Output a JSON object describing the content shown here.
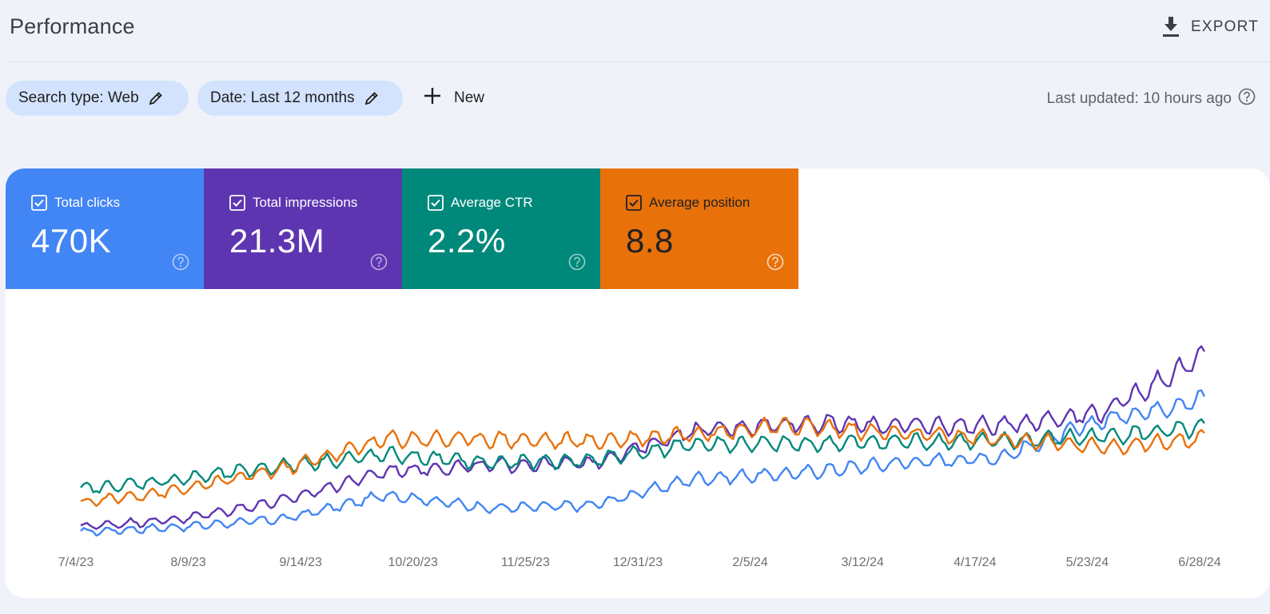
{
  "header": {
    "title": "Performance",
    "export_label": "EXPORT"
  },
  "filters": {
    "search_type": "Search type: Web",
    "date": "Date: Last 12 months",
    "new_label": "New",
    "last_updated": "Last updated: 10 hours ago"
  },
  "metrics": [
    {
      "label": "Total clicks",
      "value": "470K",
      "color": "#4285f4",
      "checked": true
    },
    {
      "label": "Total impressions",
      "value": "21.3M",
      "color": "#5e35b1",
      "checked": true
    },
    {
      "label": "Average CTR",
      "value": "2.2%",
      "color": "#00897b",
      "checked": true
    },
    {
      "label": "Average position",
      "value": "8.8",
      "color": "#e8710a",
      "checked": true
    }
  ],
  "chart_data": {
    "type": "line",
    "x_tick_labels": [
      "7/4/23",
      "8/9/23",
      "9/14/23",
      "10/20/23",
      "11/25/23",
      "12/31/23",
      "2/5/24",
      "3/12/24",
      "4/17/24",
      "5/23/24",
      "6/28/24"
    ],
    "x_range": [
      "7/1/23",
      "6/30/24"
    ],
    "y_axes_shown": false,
    "grid": false,
    "note_values": "relative trend values (0-100 normalized); axes show no numeric scale",
    "series_points": "36-day intervals aligned with tick labels, plus end point",
    "series": [
      {
        "name": "Total clicks",
        "color": "#4285f4",
        "values": [
          2,
          4,
          7,
          16,
          11,
          12,
          22,
          24,
          28,
          30,
          44,
          52
        ]
      },
      {
        "name": "Total impressions",
        "color": "#5e35b1",
        "values": [
          4,
          7,
          14,
          25,
          27,
          28,
          40,
          43,
          42,
          42,
          47,
          68
        ]
      },
      {
        "name": "Average CTR",
        "color": "#00897b",
        "values": [
          18,
          22,
          27,
          31,
          28,
          29,
          35,
          35,
          36,
          36,
          38,
          41
        ]
      },
      {
        "name": "Average position",
        "color": "#e8710a",
        "values": [
          13,
          18,
          26,
          37,
          37,
          36,
          39,
          42,
          39,
          37,
          34,
          37
        ]
      }
    ]
  }
}
